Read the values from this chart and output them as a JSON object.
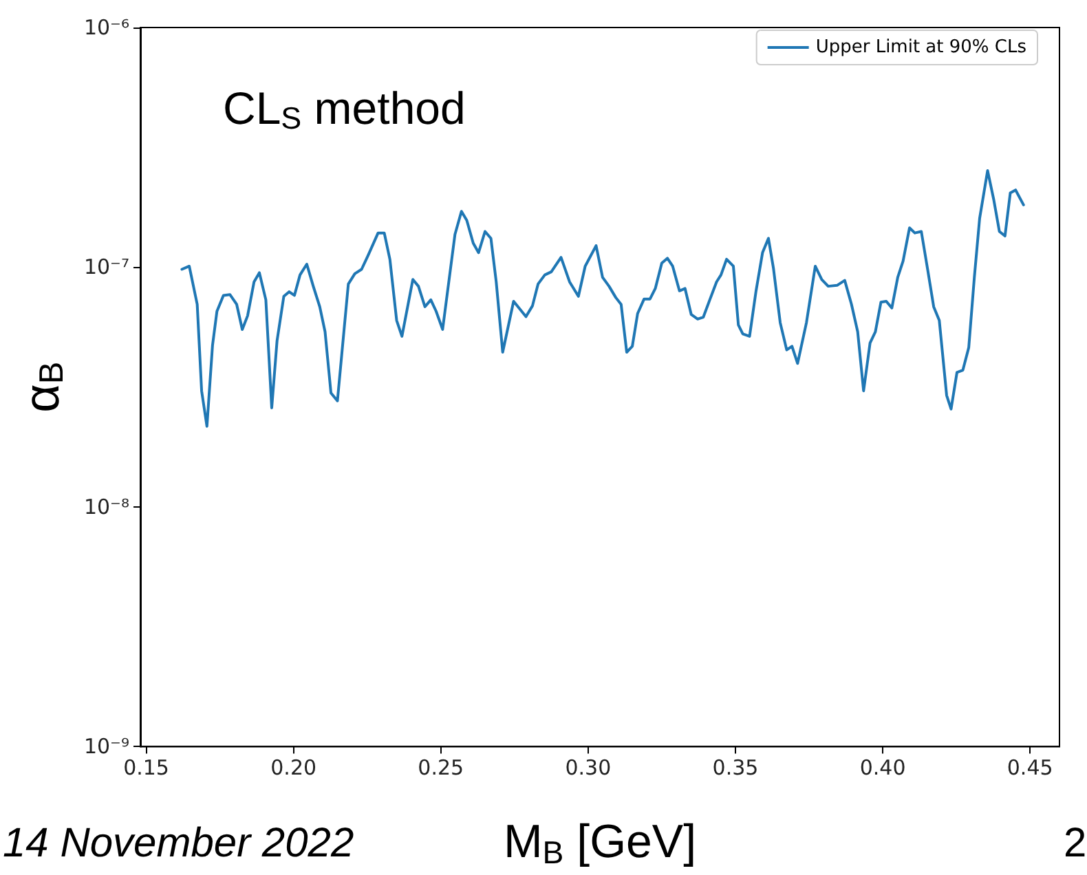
{
  "chart_data": {
    "type": "line",
    "xlabel": "M$_{B}$ [GeV]",
    "ylabel": "α$_{B}$",
    "annotations": [
      "CL$_{S}$ method",
      "14 November 2022",
      "2"
    ],
    "legend": "top right",
    "grid": false,
    "log": "y",
    "xlim": [
      0.148,
      0.46
    ],
    "xticks": [
      {
        "value": 0.15,
        "label": "0.15"
      },
      {
        "value": 0.2,
        "label": "0.20"
      },
      {
        "value": 0.25,
        "label": "0.25"
      },
      {
        "value": 0.3,
        "label": "0.30"
      },
      {
        "value": 0.35,
        "label": "0.35"
      },
      {
        "value": 0.4,
        "label": "0.40"
      },
      {
        "value": 0.45,
        "label": "0.45"
      }
    ],
    "ylim": [
      1e-09,
      1e-06
    ],
    "yticks": [
      {
        "value": 1e-09,
        "label": "10⁻⁹"
      },
      {
        "value": 1e-08,
        "label": "10⁻⁸"
      },
      {
        "value": 1e-07,
        "label": "10⁻⁷"
      },
      {
        "value": 1e-06,
        "label": "10⁻⁶"
      }
    ],
    "series": [
      {
        "name": "Upper Limit at 90% CLs",
        "color": "#1f77b4",
        "x": [
          0.1621,
          0.1646,
          0.1673,
          0.1688,
          0.1706,
          0.1725,
          0.174,
          0.1762,
          0.1784,
          0.1807,
          0.1826,
          0.1844,
          0.1866,
          0.1884,
          0.1906,
          0.1926,
          0.1944,
          0.1967,
          0.1985,
          0.2003,
          0.2022,
          0.2045,
          0.2067,
          0.2089,
          0.2107,
          0.2127,
          0.2149,
          0.2186,
          0.2208,
          0.2231,
          0.2253,
          0.2287,
          0.2308,
          0.2327,
          0.235,
          0.2368,
          0.2405,
          0.2424,
          0.2446,
          0.2466,
          0.2484,
          0.2506,
          0.2548,
          0.257,
          0.2588,
          0.261,
          0.2628,
          0.265,
          0.267,
          0.2688,
          0.271,
          0.2747,
          0.2789,
          0.2811,
          0.283,
          0.2853,
          0.2875,
          0.2908,
          0.2937,
          0.2967,
          0.299,
          0.3027,
          0.3049,
          0.3071,
          0.3094,
          0.3112,
          0.3131,
          0.315,
          0.3168,
          0.319,
          0.321,
          0.3228,
          0.325,
          0.3269,
          0.3287,
          0.331,
          0.3329,
          0.335,
          0.3372,
          0.3391,
          0.3414,
          0.3436,
          0.3451,
          0.347,
          0.3493,
          0.351,
          0.3525,
          0.3548,
          0.357,
          0.3592,
          0.3612,
          0.3629,
          0.3652,
          0.3674,
          0.3692,
          0.3711,
          0.3741,
          0.3771,
          0.3793,
          0.3815,
          0.3845,
          0.3871,
          0.3894,
          0.3915,
          0.3935,
          0.3957,
          0.3975,
          0.3994,
          0.4012,
          0.4031,
          0.4051,
          0.4069,
          0.4091,
          0.4109,
          0.4131,
          0.4153,
          0.4173,
          0.4192,
          0.4217,
          0.4232,
          0.4252,
          0.4272,
          0.4292,
          0.4311,
          0.4329,
          0.4356,
          0.4377,
          0.4396,
          0.4415,
          0.4433,
          0.4451,
          0.4478
        ],
        "values": [
          9.8e-08,
          1.01e-07,
          7e-08,
          3.05e-08,
          2.17e-08,
          4.72e-08,
          6.55e-08,
          7.63e-08,
          7.69e-08,
          7e-08,
          5.5e-08,
          6.27e-08,
          8.69e-08,
          9.49e-08,
          7.31e-08,
          2.59e-08,
          4.93e-08,
          7.56e-08,
          7.9e-08,
          7.63e-08,
          9.29e-08,
          1.03e-07,
          8.33e-08,
          6.84e-08,
          5.38e-08,
          2.99e-08,
          2.77e-08,
          8.51e-08,
          9.4e-08,
          9.8e-08,
          1.12e-07,
          1.39e-07,
          1.39e-07,
          1.08e-07,
          6e-08,
          5.15e-08,
          8.89e-08,
          8.33e-08,
          6.84e-08,
          7.31e-08,
          6.55e-08,
          5.5e-08,
          1.37e-07,
          1.71e-07,
          1.57e-07,
          1.26e-07,
          1.15e-07,
          1.41e-07,
          1.32e-07,
          8.69e-08,
          4.42e-08,
          7.21e-08,
          6.22e-08,
          6.9e-08,
          8.51e-08,
          9.29e-08,
          9.57e-08,
          1.1e-07,
          8.69e-08,
          7.56e-08,
          1.01e-07,
          1.23e-07,
          9.08e-08,
          8.33e-08,
          7.47e-08,
          7e-08,
          4.42e-08,
          4.68e-08,
          6.41e-08,
          7.37e-08,
          7.37e-08,
          8.15e-08,
          1.04e-07,
          1.09e-07,
          1.01e-07,
          7.97e-08,
          8.15e-08,
          6.35e-08,
          6.08e-08,
          6.19e-08,
          7.37e-08,
          8.69e-08,
          9.29e-08,
          1.08e-07,
          1.01e-07,
          5.74e-08,
          5.27e-08,
          5.15e-08,
          7.97e-08,
          1.15e-07,
          1.32e-07,
          9.91e-08,
          5.87e-08,
          4.52e-08,
          4.68e-08,
          3.97e-08,
          5.87e-08,
          1.01e-07,
          8.89e-08,
          8.33e-08,
          8.4e-08,
          8.81e-08,
          7e-08,
          5.38e-08,
          3.05e-08,
          4.83e-08,
          5.38e-08,
          7.15e-08,
          7.21e-08,
          6.76e-08,
          9.08e-08,
          1.06e-07,
          1.46e-07,
          1.39e-07,
          1.41e-07,
          9.7e-08,
          6.84e-08,
          6e-08,
          2.92e-08,
          2.56e-08,
          3.64e-08,
          3.72e-08,
          4.62e-08,
          9.08e-08,
          1.6e-07,
          2.53e-07,
          1.91e-07,
          1.41e-07,
          1.35e-07,
          2.04e-07,
          2.1e-07,
          1.82e-07
        ]
      }
    ]
  }
}
